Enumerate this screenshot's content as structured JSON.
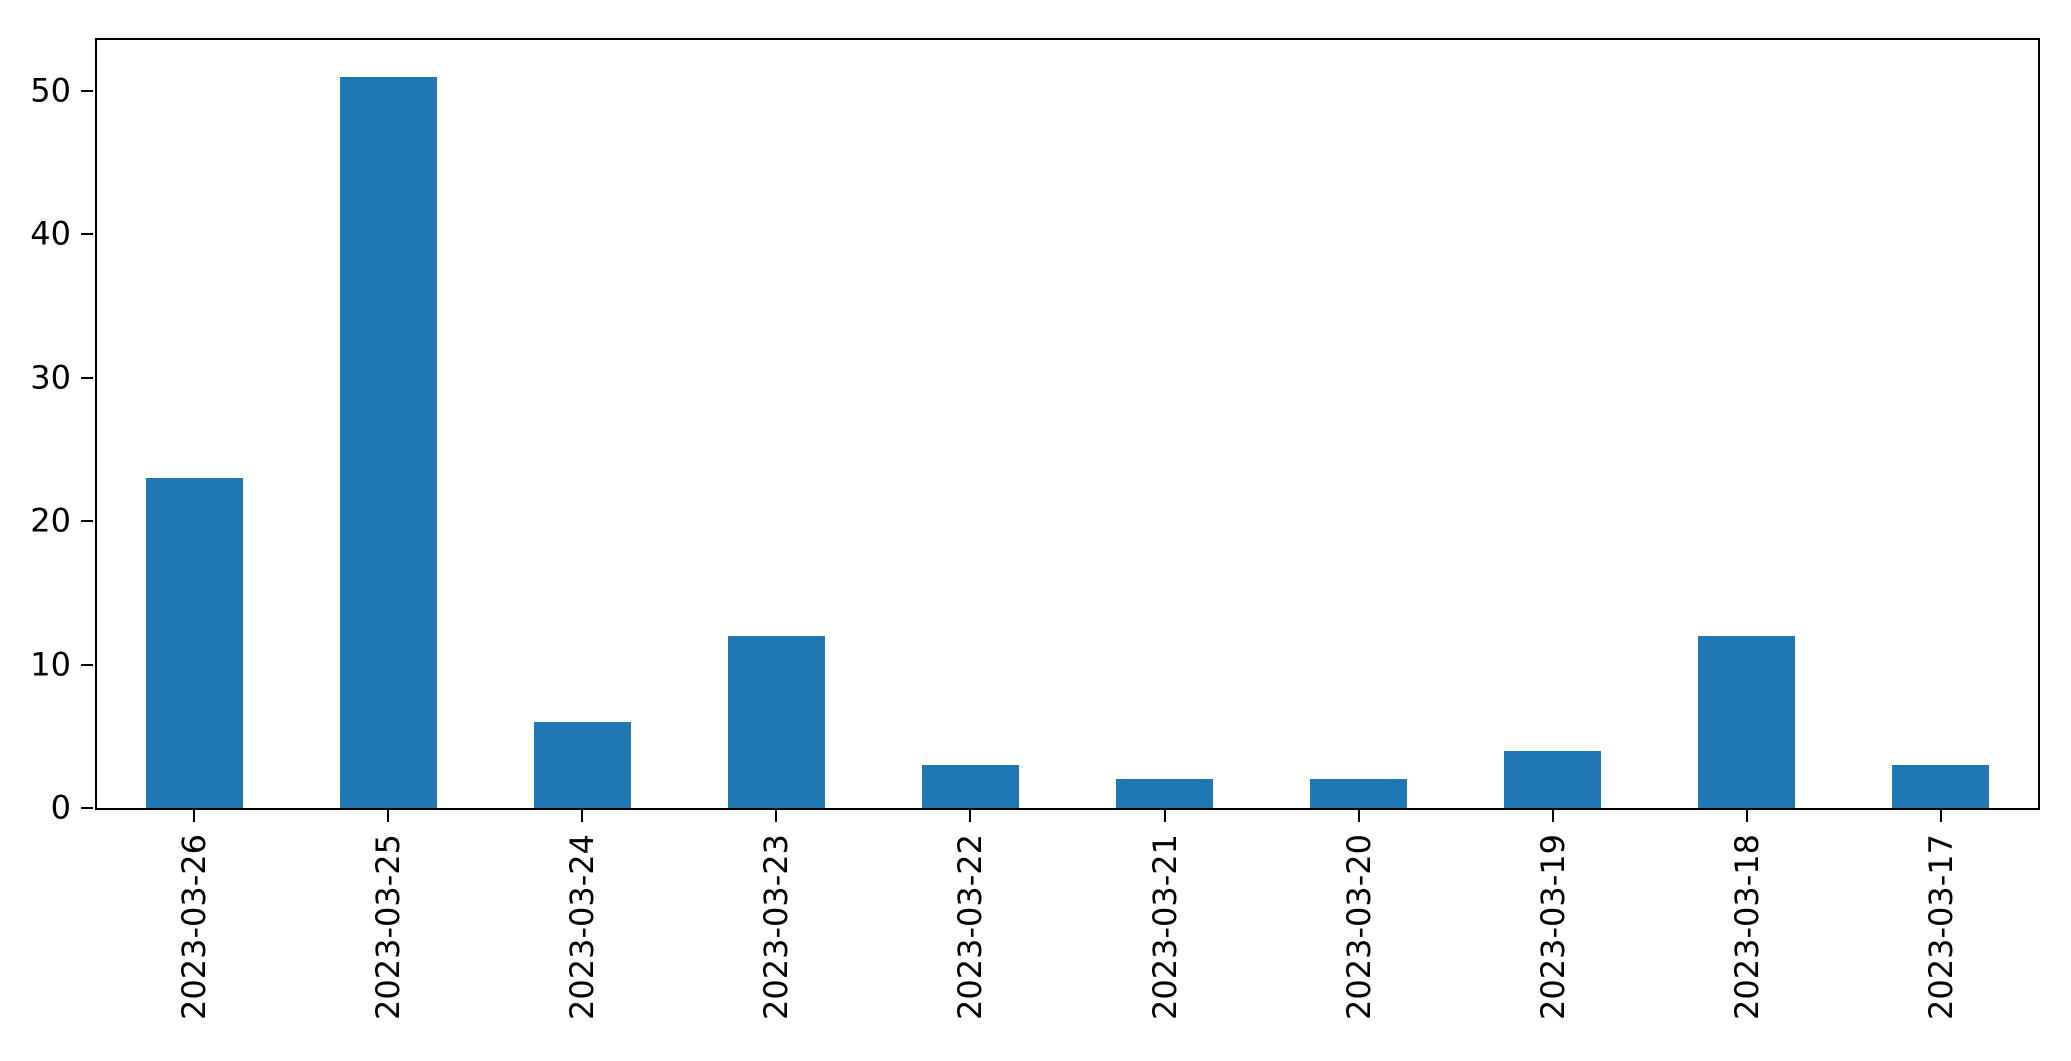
{
  "chart_data": {
    "type": "bar",
    "categories": [
      "2023-03-26",
      "2023-03-25",
      "2023-03-24",
      "2023-03-23",
      "2023-03-22",
      "2023-03-21",
      "2023-03-20",
      "2023-03-19",
      "2023-03-18",
      "2023-03-17"
    ],
    "values": [
      23,
      51,
      6,
      12,
      3,
      2,
      2,
      4,
      12,
      3
    ],
    "title": "",
    "xlabel": "",
    "ylabel": "",
    "ylim": [
      0,
      53.55
    ],
    "yticks": [
      0,
      10,
      20,
      30,
      40,
      50
    ],
    "bar_color": "#1f77b4",
    "bar_width_fraction": 0.5,
    "grid": false,
    "legend": "none",
    "x_tick_rotation": 90
  }
}
